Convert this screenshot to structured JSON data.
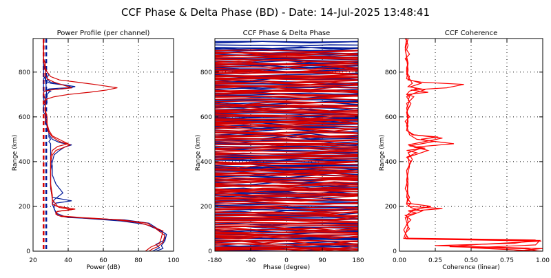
{
  "figure": {
    "title": "CCF Phase & Delta Phase (BD) - Date: 14-Jul-2025 13:48:41"
  },
  "chart_data": [
    {
      "id": "power",
      "type": "line",
      "title": "Power Profile (per channel)",
      "xlabel": "Power (dB)",
      "ylabel": "Range (km)",
      "xlim": [
        20,
        100
      ],
      "ylim": [
        0,
        950
      ],
      "xticks": [
        20,
        40,
        60,
        80,
        100
      ],
      "yticks": [
        0,
        200,
        400,
        600,
        800
      ],
      "grid": true,
      "reference_lines": [
        {
          "x": 26.0,
          "color": "#d40000",
          "dashed": true
        },
        {
          "x": 27.5,
          "color": "#001a99",
          "dashed": true
        }
      ],
      "series": [
        {
          "color": "#001a99",
          "x": [
            90,
            94,
            93,
            95,
            96,
            91,
            86,
            72,
            55,
            40,
            34,
            33,
            32,
            31,
            32,
            37,
            33,
            31,
            31,
            30,
            30,
            30,
            30,
            30,
            29,
            30,
            29,
            29,
            29,
            28,
            28,
            28,
            27,
            27,
            27,
            27,
            27,
            26,
            26,
            26,
            26,
            27,
            27,
            27,
            26,
            26,
            26,
            26,
            26,
            26,
            26,
            26,
            26,
            27,
            27,
            27,
            28,
            27,
            28,
            28,
            29,
            30,
            27,
            37,
            42,
            40,
            30,
            27,
            27,
            26,
            26,
            26,
            26,
            26,
            26,
            26,
            26,
            26,
            26,
            26,
            26,
            26,
            26,
            26,
            26,
            26,
            26,
            26,
            26,
            26,
            26,
            26,
            26
          ],
          "y": [
            0,
            12,
            25,
            45,
            75,
            100,
            125,
            140,
            145,
            150,
            160,
            175,
            190,
            210,
            230,
            260,
            300,
            340,
            380,
            420,
            440,
            460,
            470,
            480,
            490,
            500,
            510,
            520,
            530,
            540,
            550,
            560,
            570,
            580,
            590,
            600,
            610,
            620,
            630,
            640,
            650,
            660,
            670,
            680,
            690,
            700,
            710,
            720,
            730,
            740,
            750,
            760,
            770,
            780,
            790,
            800,
            660,
            680,
            690,
            700,
            710,
            715,
            720,
            725,
            730,
            740,
            750,
            760,
            770,
            780,
            790,
            800,
            810,
            820,
            830,
            840,
            850,
            860,
            870,
            880,
            890,
            900,
            910,
            920,
            930,
            940,
            945,
            948,
            950,
            950,
            950,
            950,
            950
          ]
        },
        {
          "color": "#001a99",
          "x": [
            88,
            92,
            90,
            95,
            95,
            90,
            84,
            70,
            52,
            38,
            33,
            32,
            32,
            33,
            38,
            42,
            31,
            30,
            30,
            30,
            31,
            32,
            35,
            38,
            42,
            35,
            31,
            29,
            29,
            28,
            28,
            27,
            27,
            27,
            27,
            26,
            26,
            26,
            26,
            26,
            27,
            28,
            29,
            35,
            40,
            44,
            36,
            30,
            28,
            28,
            29,
            27,
            26,
            26,
            26,
            26,
            26
          ],
          "y": [
            0,
            15,
            30,
            50,
            80,
            100,
            120,
            135,
            145,
            155,
            170,
            190,
            205,
            215,
            220,
            225,
            240,
            280,
            320,
            360,
            400,
            430,
            450,
            465,
            475,
            485,
            500,
            520,
            540,
            560,
            580,
            600,
            620,
            640,
            660,
            680,
            690,
            700,
            705,
            710,
            715,
            720,
            725,
            728,
            730,
            735,
            745,
            755,
            765,
            775,
            790,
            810,
            830,
            860,
            890,
            920,
            950
          ]
        },
        {
          "color": "#d40000",
          "x": [
            86,
            88,
            91,
            94,
            95,
            90,
            85,
            70,
            50,
            36,
            33,
            33,
            36,
            42,
            35,
            31,
            31,
            30,
            30,
            30,
            31,
            33,
            38,
            41,
            35,
            31,
            29,
            28,
            28,
            27,
            27,
            27,
            27,
            27,
            26,
            26,
            27,
            28,
            32,
            40,
            52,
            62,
            68,
            55,
            45,
            35,
            30,
            28,
            27,
            27,
            26,
            26,
            26,
            26,
            26,
            26
          ],
          "y": [
            0,
            10,
            20,
            40,
            70,
            100,
            125,
            140,
            148,
            155,
            165,
            175,
            180,
            185,
            195,
            210,
            250,
            300,
            350,
            400,
            430,
            450,
            465,
            475,
            490,
            510,
            530,
            550,
            570,
            590,
            610,
            630,
            650,
            660,
            665,
            668,
            672,
            680,
            690,
            700,
            710,
            720,
            730,
            745,
            755,
            765,
            780,
            800,
            820,
            840,
            860,
            880,
            900,
            920,
            940,
            950
          ]
        },
        {
          "color": "#d40000",
          "x": [
            84,
            87,
            92,
            93,
            94,
            88,
            80,
            65,
            48,
            35,
            33,
            34,
            39,
            44,
            34,
            31,
            30,
            30,
            30,
            31,
            34,
            40,
            36,
            31,
            29,
            28,
            28,
            27,
            27,
            27,
            26,
            26,
            27,
            30,
            36,
            42,
            38,
            32,
            28,
            27,
            27,
            26,
            26,
            26,
            26
          ],
          "y": [
            0,
            18,
            35,
            60,
            90,
            110,
            128,
            142,
            150,
            158,
            168,
            178,
            183,
            188,
            200,
            230,
            290,
            360,
            420,
            450,
            468,
            480,
            495,
            515,
            540,
            570,
            600,
            630,
            660,
            680,
            700,
            710,
            715,
            720,
            725,
            730,
            740,
            755,
            770,
            790,
            810,
            850,
            890,
            930,
            950
          ]
        }
      ]
    },
    {
      "id": "phase",
      "type": "line",
      "title": "CCF Phase & Delta Phase",
      "xlabel": "Phase (degree)",
      "ylabel": "Range (km)",
      "xlim": [
        -180,
        180
      ],
      "ylim": [
        0,
        950
      ],
      "xticks": [
        -180,
        -90,
        0,
        90,
        180
      ],
      "yticks": [
        0,
        200,
        400,
        600,
        800
      ],
      "grid": true,
      "series": [
        {
          "name": "CCF Phase",
          "color": "#001a99",
          "pattern": "random-walk",
          "count": 130,
          "min_step": 3,
          "max_step": 11,
          "seed": 11
        },
        {
          "name": "Delta Phase",
          "color": "#d40000",
          "pattern": "random-walk",
          "count": 150,
          "min_step": 2,
          "max_step": 10,
          "seed": 29
        }
      ]
    },
    {
      "id": "coherence",
      "type": "line",
      "title": "CCF Coherence",
      "xlabel": "Coherence (linear)",
      "ylabel": "Range (km)",
      "xlim": [
        0.0,
        1.0
      ],
      "ylim": [
        0,
        950
      ],
      "xticks": [
        0.0,
        0.25,
        0.5,
        0.75,
        1.0
      ],
      "xtick_labels": [
        "0.00",
        "0.25",
        "0.50",
        "0.75",
        "1.00"
      ],
      "yticks": [
        0,
        200,
        400,
        600,
        800
      ],
      "grid": true,
      "series": [
        {
          "color": "#ff0000",
          "x": [
            0.97,
            0.9,
            0.35,
            0.55,
            0.99,
            0.05,
            0.06,
            0.04,
            0.07,
            0.05,
            0.08,
            0.04,
            0.12,
            0.06,
            0.22,
            0.05,
            0.07,
            0.04,
            0.06,
            0.05,
            0.08,
            0.05,
            0.12,
            0.05,
            0.18,
            0.07,
            0.24,
            0.15,
            0.27,
            0.09,
            0.05,
            0.06,
            0.04,
            0.07,
            0.05,
            0.06,
            0.05,
            0.07,
            0.1,
            0.06,
            0.12,
            0.2,
            0.08,
            0.33,
            0.45,
            0.15,
            0.06,
            0.07,
            0.05,
            0.05,
            0.06,
            0.04,
            0.07,
            0.05,
            0.06,
            0.05,
            0.04
          ],
          "y": [
            0,
            10,
            20,
            30,
            45,
            55,
            60,
            80,
            100,
            120,
            140,
            160,
            170,
            180,
            200,
            215,
            240,
            280,
            320,
            360,
            400,
            420,
            440,
            450,
            460,
            470,
            490,
            500,
            510,
            520,
            540,
            560,
            580,
            600,
            620,
            640,
            660,
            670,
            690,
            700,
            705,
            710,
            720,
            730,
            745,
            755,
            765,
            780,
            800,
            820,
            840,
            860,
            880,
            900,
            920,
            940,
            950
          ]
        },
        {
          "color": "#ff0000",
          "x": [
            0.8,
            1.0,
            0.25,
            0.8,
            0.95,
            0.04,
            0.05,
            0.03,
            0.06,
            0.05,
            0.09,
            0.3,
            0.06,
            0.08,
            0.05,
            0.06,
            0.05,
            0.09,
            0.06,
            0.15,
            0.06,
            0.18,
            0.3,
            0.1,
            0.05,
            0.06,
            0.05,
            0.08,
            0.06,
            0.07,
            0.05,
            0.07,
            0.12,
            0.08,
            0.15,
            0.05,
            0.06,
            0.05,
            0.04,
            0.05
          ],
          "y": [
            0,
            12,
            25,
            35,
            50,
            58,
            70,
            95,
            130,
            160,
            180,
            190,
            200,
            215,
            240,
            300,
            360,
            410,
            440,
            460,
            475,
            490,
            505,
            520,
            540,
            580,
            620,
            660,
            675,
            690,
            700,
            715,
            725,
            735,
            750,
            770,
            810,
            860,
            910,
            950
          ]
        },
        {
          "color": "#ff0000",
          "x": [
            0.99,
            0.5,
            0.95,
            0.98,
            0.03,
            0.04,
            0.06,
            0.04,
            0.16,
            0.08,
            0.05,
            0.06,
            0.05,
            0.07,
            0.06,
            0.2,
            0.1,
            0.38,
            0.12,
            0.07,
            0.05,
            0.06,
            0.05,
            0.07,
            0.05,
            0.1,
            0.18,
            0.06,
            0.09,
            0.05,
            0.06,
            0.04,
            0.06
          ],
          "y": [
            0,
            15,
            28,
            48,
            57,
            75,
            110,
            150,
            180,
            195,
            210,
            250,
            320,
            380,
            420,
            450,
            465,
            480,
            500,
            520,
            560,
            600,
            640,
            670,
            690,
            705,
            722,
            735,
            750,
            790,
            840,
            900,
            950
          ]
        }
      ]
    }
  ]
}
